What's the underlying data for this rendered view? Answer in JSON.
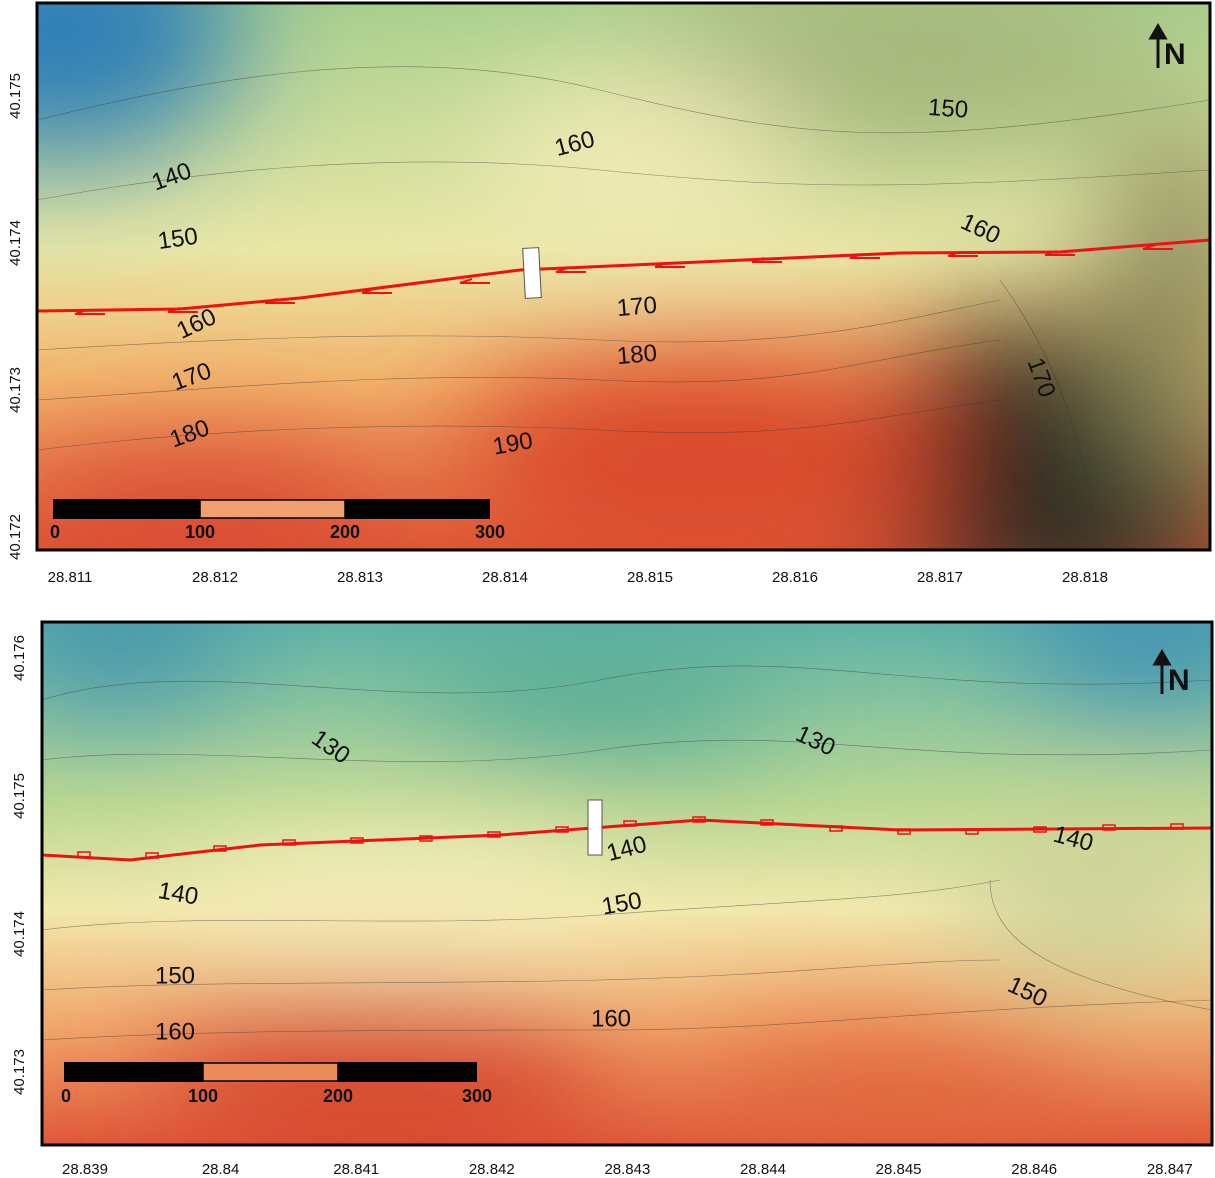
{
  "panels": [
    {
      "x_ticks": [
        28.811,
        28.812,
        28.813,
        28.814,
        28.815,
        28.816,
        28.817,
        28.818
      ],
      "y_ticks": [
        40.175,
        40.174,
        40.173,
        40.172
      ],
      "contour_labels": [
        140,
        150,
        160,
        150,
        160,
        170,
        180,
        160,
        170,
        180,
        190,
        170
      ],
      "scale_bar": [
        0,
        100,
        200,
        300
      ],
      "north": "N"
    },
    {
      "x_ticks": [
        28.839,
        28.84,
        28.841,
        28.842,
        28.843,
        28.844,
        28.845,
        28.846,
        28.847
      ],
      "y_ticks": [
        40.176,
        40.175,
        40.174,
        40.173
      ],
      "contour_labels": [
        130,
        130,
        140,
        140,
        140,
        150,
        150,
        160,
        160,
        150
      ],
      "scale_bar": [
        0,
        100,
        200,
        300
      ],
      "north": "N"
    }
  ]
}
